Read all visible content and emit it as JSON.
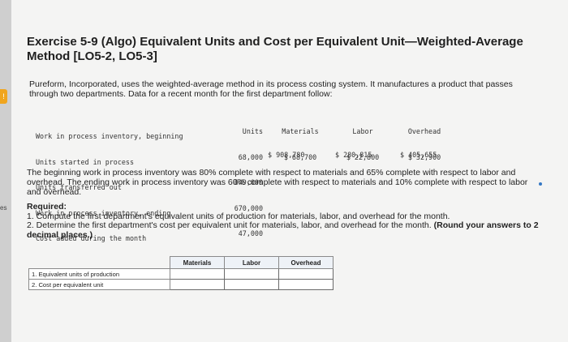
{
  "title": "Exercise 5-9 (Algo) Equivalent Units and Cost per Equivalent Unit—Weighted-Average Method [LO5-2, LO5-3]",
  "intro": "Pureform, Incorporated, uses the weighted-average method in its process costing system. It manufactures a product that passes through two departments. Data for a recent month for the first department follow:",
  "side": {
    "tab": "!",
    "marker": "es"
  },
  "data_table": {
    "row_labels": [
      "Work in process inventory, beginning",
      "Units started in process",
      "Units transferred out",
      "Work in process inventory, ending",
      "Cost added during the month"
    ],
    "units": {
      "header": "Units",
      "values": [
        "68,000",
        "649,000",
        "670,000",
        "47,000"
      ]
    },
    "materials": {
      "header": "Materials",
      "beginning": "$ 68,700",
      "added": "$ 908,780"
    },
    "labor": {
      "header": "Labor",
      "beginning": "$ 22,800",
      "added": "$ 280,815"
    },
    "overhead": {
      "header": "Overhead",
      "beginning": "$ 32,900",
      "added": "$ 405,655"
    }
  },
  "paragraph": "The beginning work in process inventory was 80% complete with respect to materials and 65% complete with respect to labor and overhead. The ending work in process inventory was 60% complete with respect to materials and 10% complete with respect to labor and overhead.",
  "required": {
    "heading": "Required:",
    "item1": "1. Compute the first department's equivalent units of production for materials, labor, and overhead for the month.",
    "item2": "2. Determine the first department's cost per equivalent unit for materials, labor, and overhead for the month.",
    "item2_bold": "(Round your answers to 2 decimal places.)"
  },
  "answer_table": {
    "headers": [
      "Materials",
      "Labor",
      "Overhead"
    ],
    "rows": [
      "1. Equivalent units of production",
      "2. Cost per equivalent unit"
    ]
  }
}
